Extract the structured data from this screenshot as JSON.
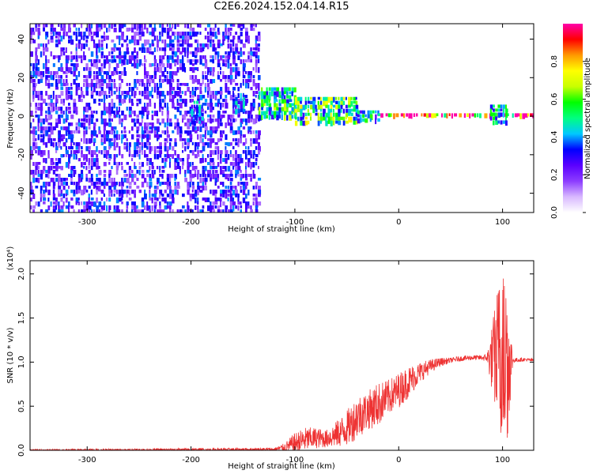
{
  "title": "C2E6.2024.152.04.14.R15",
  "chart_data": [
    {
      "type": "heatmap",
      "xlabel": "Height of straight line (km)",
      "ylabel": "Frequency (Hz)",
      "xlim": [
        -355,
        130
      ],
      "ylim": [
        -50,
        48
      ],
      "x_ticks": [
        "-300",
        "-200",
        "-100",
        "0",
        "100"
      ],
      "y_ticks": [
        "-40",
        "-20",
        "0",
        "20",
        "40"
      ],
      "colorbar": {
        "label": "Normalized spectral amplitude",
        "range": [
          0,
          1
        ],
        "ticks": [
          "0.0",
          "0.2",
          "0.4",
          "0.6",
          "0.8"
        ],
        "colors": [
          "#ffffff",
          "#d8b8ff",
          "#8c3cff",
          "#5a00ff",
          "#0000ff",
          "#00c8ff",
          "#00ff80",
          "#00ff00",
          "#c8ff00",
          "#ffff00",
          "#ff9900",
          "#ff0000",
          "#ff00aa"
        ]
      },
      "regions": [
        {
          "x": [
            -355,
            -135
          ],
          "f": [
            -50,
            48
          ],
          "amp": 0.25,
          "desc_level": "noise"
        },
        {
          "x": [
            -200,
            -190
          ],
          "f": [
            -3,
            8
          ],
          "amp": 0.35
        },
        {
          "x": [
            -160,
            -150
          ],
          "f": [
            2,
            12
          ],
          "amp": 0.35
        },
        {
          "x": [
            -135,
            -100
          ],
          "f": [
            0,
            15
          ],
          "amp": 0.5
        },
        {
          "x": [
            -100,
            -40
          ],
          "f": [
            -4,
            10
          ],
          "amp": 0.55
        },
        {
          "x": [
            -40,
            -20
          ],
          "f": [
            -3,
            3
          ],
          "amp": 0.45
        },
        {
          "x": [
            -20,
            130
          ],
          "f": [
            -0.5,
            1.5
          ],
          "amp": 0.95
        },
        {
          "x": [
            88,
            105
          ],
          "f": [
            -4,
            6
          ],
          "amp": 0.45
        }
      ]
    },
    {
      "type": "line",
      "xlabel": "Height of straight line (km)",
      "ylabel": "SNR (10 * v/v)",
      "multiplier": "(x10⁴)",
      "xlim": [
        -355,
        130
      ],
      "ylim": [
        0,
        2.15
      ],
      "x_ticks": [
        "-300",
        "-200",
        "-100",
        "0",
        "100"
      ],
      "y_ticks": [
        "0.0",
        "0.5",
        "1.0",
        "1.5",
        "2.0"
      ],
      "color": "#ee3333",
      "envelope": {
        "x": [
          -355,
          -120,
          -110,
          -100,
          -90,
          -80,
          -70,
          -60,
          -50,
          -40,
          -30,
          -20,
          -10,
          0,
          10,
          20,
          30,
          40,
          50,
          60,
          70,
          80,
          85,
          90,
          95,
          100,
          105,
          110,
          120,
          130
        ],
        "mean": [
          0.0,
          0.01,
          0.03,
          0.08,
          0.12,
          0.14,
          0.13,
          0.18,
          0.25,
          0.38,
          0.45,
          0.52,
          0.6,
          0.68,
          0.78,
          0.88,
          0.95,
          1.0,
          1.02,
          1.04,
          1.05,
          1.05,
          1.05,
          1.04,
          1.05,
          1.1,
          1.0,
          1.02,
          1.03,
          1.02
        ],
        "spread": [
          0.01,
          0.02,
          0.05,
          0.12,
          0.14,
          0.12,
          0.1,
          0.15,
          0.2,
          0.25,
          0.22,
          0.25,
          0.2,
          0.2,
          0.18,
          0.12,
          0.08,
          0.05,
          0.03,
          0.03,
          0.03,
          0.03,
          0.05,
          0.4,
          0.8,
          1.0,
          0.9,
          0.03,
          0.02,
          0.02
        ]
      }
    }
  ]
}
